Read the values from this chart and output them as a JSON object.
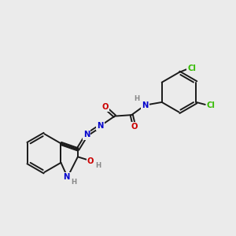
{
  "bg_color": "#ebebeb",
  "atom_colors": {
    "N": "#0000cc",
    "O": "#cc0000",
    "Cl": "#33bb00",
    "H": "#888888"
  },
  "bond_color": "#1a1a1a",
  "bond_lw": 1.4,
  "font_size": 7.2
}
